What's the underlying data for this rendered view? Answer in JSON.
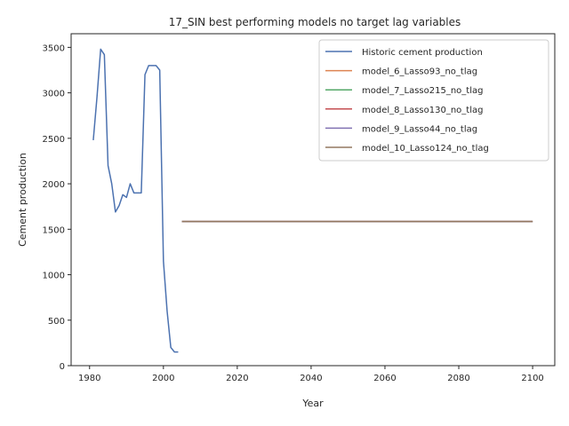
{
  "chart_data": {
    "type": "line",
    "title": "17_SIN best performing models no target lag variables",
    "xlabel": "Year",
    "ylabel": "Cement production",
    "xlim": [
      1975,
      2106
    ],
    "ylim": [
      0,
      3650
    ],
    "xticks": [
      1980,
      2000,
      2020,
      2040,
      2060,
      2080,
      2100
    ],
    "yticks": [
      0,
      500,
      1000,
      1500,
      2000,
      2500,
      3000,
      3500
    ],
    "grid": false,
    "legend_position": "top-right",
    "series": [
      {
        "name": "Historic cement production",
        "color": "#4c72b0",
        "x": [
          1981,
          1982,
          1983,
          1984,
          1985,
          1986,
          1987,
          1988,
          1989,
          1990,
          1991,
          1992,
          1993,
          1994,
          1995,
          1996,
          1997,
          1998,
          1999,
          2000,
          2001,
          2002,
          2003,
          2004
        ],
        "y": [
          2480,
          2950,
          3480,
          3420,
          2200,
          2000,
          1690,
          1760,
          1880,
          1850,
          2000,
          1900,
          1900,
          1900,
          3200,
          3300,
          3300,
          3300,
          3250,
          1150,
          600,
          200,
          150,
          150
        ]
      },
      {
        "name": "model_6_Lasso93_no_tlag",
        "color": "#dd8452",
        "x": [
          2005,
          2100
        ],
        "y": [
          1585,
          1585
        ]
      },
      {
        "name": "model_7_Lasso215_no_tlag",
        "color": "#55a868",
        "x": [
          2005,
          2100
        ],
        "y": [
          1585,
          1585
        ]
      },
      {
        "name": "model_8_Lasso130_no_tlag",
        "color": "#c44e52",
        "x": [
          2005,
          2100
        ],
        "y": [
          1585,
          1585
        ]
      },
      {
        "name": "model_9_Lasso44_no_tlag",
        "color": "#8172b3",
        "x": [
          2005,
          2100
        ],
        "y": [
          1585,
          1585
        ]
      },
      {
        "name": "model_10_Lasso124_no_tlag",
        "color": "#937860",
        "x": [
          2005,
          2100
        ],
        "y": [
          1585,
          1585
        ]
      }
    ]
  }
}
